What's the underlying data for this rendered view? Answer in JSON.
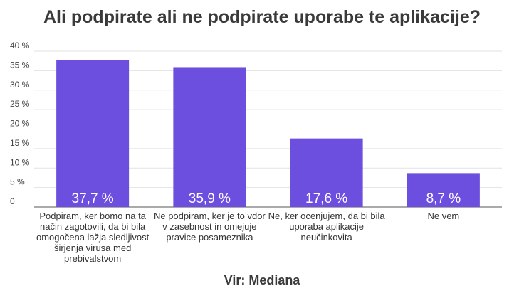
{
  "title": "Ali podpirate ali ne podpirate uporabe te aplikacije?",
  "source": "Vir: Mediana",
  "colors": {
    "bar": "#6c4fde",
    "grid": "#e2e2e2",
    "axis": "#555555"
  },
  "chart_data": {
    "type": "bar",
    "title": "Ali podpirate ali ne podpirate uporabe te aplikacije?",
    "xlabel": "",
    "ylabel": "",
    "ylim": [
      0,
      40
    ],
    "yticks": [
      0,
      5,
      10,
      15,
      20,
      25,
      30,
      35,
      40
    ],
    "ytick_labels": [
      "0",
      "5 %",
      "10 %",
      "15 %",
      "20 %",
      "25 %",
      "30 %",
      "35 %",
      "40 %"
    ],
    "grid": true,
    "categories": [
      [
        "Podpiram, ker bomo na ta",
        "način zagotovili, da bi bila",
        "omogočena lažja sledljivost",
        "širjenja virusa med",
        "prebivalstvom"
      ],
      [
        "Ne podpiram, ker je to vdor",
        "v zasebnost in omejuje",
        "pravice posameznika"
      ],
      [
        "Ne, ker ocenjujem, da bi bila",
        "uporaba aplikacije",
        "neučinkovita"
      ],
      [
        "Ne vem"
      ]
    ],
    "values": [
      37.7,
      35.9,
      17.6,
      8.7
    ],
    "data_labels": [
      "37,7 %",
      "35,9 %",
      "17,6 %",
      "8,7 %"
    ]
  }
}
